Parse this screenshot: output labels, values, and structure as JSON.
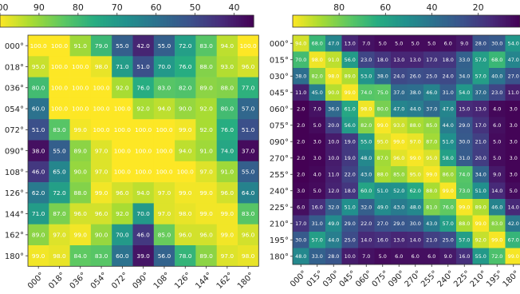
{
  "chart_data": [
    {
      "type": "heatmap",
      "title": "",
      "colorbar": {
        "orientation": "horizontal",
        "position": "top",
        "reversed": true,
        "vmin": 35,
        "vmax": 100,
        "ticks": [
          100,
          90,
          80,
          70,
          60,
          50,
          40
        ],
        "colormap": "viridis"
      },
      "y_labels": [
        "000°",
        "018°",
        "036°",
        "054°",
        "072°",
        "090°",
        "108°",
        "126°",
        "144°",
        "162°",
        "180°"
      ],
      "x_labels": [
        "000°",
        "018°",
        "036°",
        "054°",
        "072°",
        "090°",
        "108°",
        "126°",
        "144°",
        "162°",
        "180°"
      ],
      "values": [
        [
          100.0,
          100.0,
          91.0,
          79.0,
          55.0,
          42.0,
          55.0,
          72.0,
          83.0,
          94.0,
          100.0
        ],
        [
          95.0,
          100.0,
          100.0,
          98.0,
          71.0,
          51.0,
          70.0,
          76.0,
          88.0,
          93.0,
          96.0
        ],
        [
          80.0,
          100.0,
          100.0,
          100.0,
          92.0,
          76.0,
          83.0,
          82.0,
          89.0,
          88.0,
          77.0
        ],
        [
          60.0,
          100.0,
          100.0,
          100.0,
          100.0,
          92.0,
          94.0,
          90.0,
          92.0,
          80.0,
          57.0
        ],
        [
          51.0,
          83.0,
          99.0,
          100.0,
          100.0,
          100.0,
          100.0,
          99.0,
          92.0,
          76.0,
          51.0
        ],
        [
          38.0,
          55.0,
          89.0,
          97.0,
          100.0,
          100.0,
          100.0,
          94.0,
          91.0,
          74.0,
          37.0
        ],
        [
          46.0,
          65.0,
          90.0,
          97.0,
          100.0,
          100.0,
          100.0,
          100.0,
          97.0,
          91.0,
          55.0
        ],
        [
          62.0,
          72.0,
          88.0,
          99.0,
          96.0,
          94.0,
          97.0,
          99.0,
          99.0,
          96.0,
          64.0
        ],
        [
          71.0,
          87.0,
          96.0,
          96.0,
          92.0,
          70.0,
          97.0,
          98.0,
          99.0,
          99.0,
          83.0
        ],
        [
          89.0,
          97.0,
          99.0,
          90.0,
          70.0,
          46.0,
          85.0,
          96.0,
          96.0,
          99.0,
          96.0
        ],
        [
          99.0,
          98.0,
          84.0,
          83.0,
          60.0,
          39.0,
          56.0,
          78.0,
          89.0,
          97.0,
          98.0
        ]
      ]
    },
    {
      "type": "heatmap",
      "title": "",
      "colorbar": {
        "orientation": "horizontal",
        "position": "top",
        "reversed": true,
        "vmin": 2,
        "vmax": 100,
        "ticks": [
          80,
          60,
          40,
          20
        ],
        "colormap": "viridis"
      },
      "y_labels": [
        "000°",
        "015°",
        "030°",
        "045°",
        "060°",
        "075°",
        "090°",
        "270°",
        "255°",
        "240°",
        "225°",
        "210°",
        "195°",
        "180°"
      ],
      "x_labels": [
        "000°",
        "015°",
        "030°",
        "045°",
        "060°",
        "075°",
        "090°",
        "270°",
        "255°",
        "240°",
        "225°",
        "210°",
        "195°",
        "180°"
      ],
      "values": [
        [
          94.0,
          68.0,
          47.0,
          13.0,
          7.0,
          5.0,
          5.0,
          5.0,
          5.0,
          6.0,
          9.0,
          28.0,
          30.0,
          54.0
        ],
        [
          70.0,
          98.0,
          91.0,
          56.0,
          23.0,
          18.0,
          13.0,
          13.0,
          17.0,
          18.0,
          33.0,
          57.0,
          68.0,
          47.0
        ],
        [
          38.0,
          82.0,
          98.0,
          89.0,
          53.0,
          38.0,
          24.0,
          26.0,
          25.0,
          24.0,
          34.0,
          57.0,
          40.0,
          27.0
        ],
        [
          11.0,
          45.0,
          90.0,
          99.0,
          74.0,
          75.0,
          37.0,
          38.0,
          46.0,
          31.0,
          54.0,
          37.0,
          23.0,
          11.0
        ],
        [
          2.0,
          7.0,
          36.0,
          61.0,
          98.0,
          80.0,
          47.0,
          44.0,
          37.0,
          47.0,
          15.0,
          13.0,
          4.0,
          3.0
        ],
        [
          2.0,
          5.0,
          20.0,
          56.0,
          82.0,
          99.0,
          93.0,
          88.0,
          85.0,
          44.0,
          29.0,
          17.0,
          6.0,
          3.0
        ],
        [
          2.0,
          3.0,
          10.0,
          19.0,
          55.0,
          95.0,
          99.0,
          97.0,
          87.0,
          51.0,
          30.0,
          21.0,
          5.0,
          3.0
        ],
        [
          2.0,
          3.0,
          10.0,
          19.0,
          48.0,
          87.0,
          96.0,
          99.0,
          95.0,
          58.0,
          31.0,
          20.0,
          5.0,
          3.0
        ],
        [
          2.0,
          4.0,
          11.0,
          22.0,
          43.0,
          88.0,
          85.0,
          95.0,
          99.0,
          86.0,
          74.0,
          34.0,
          9.0,
          3.0
        ],
        [
          3.0,
          5.0,
          12.0,
          18.0,
          60.0,
          51.0,
          52.0,
          62.0,
          88.0,
          99.0,
          73.0,
          51.0,
          14.0,
          5.0
        ],
        [
          6.0,
          16.0,
          32.0,
          51.0,
          32.0,
          49.0,
          43.0,
          48.0,
          81.0,
          76.0,
          99.0,
          89.0,
          46.0,
          14.0
        ],
        [
          17.0,
          31.0,
          49.0,
          29.0,
          22.0,
          27.0,
          29.0,
          30.0,
          43.0,
          57.0,
          88.0,
          99.0,
          83.0,
          42.0
        ],
        [
          30.0,
          57.0,
          44.0,
          25.0,
          14.0,
          16.0,
          13.0,
          14.0,
          21.0,
          25.0,
          57.0,
          92.0,
          99.0,
          67.0
        ],
        [
          48.0,
          33.0,
          28.0,
          10.0,
          7.0,
          5.0,
          6.0,
          6.0,
          6.0,
          9.0,
          16.0,
          55.0,
          72.0,
          99.0
        ]
      ]
    }
  ]
}
